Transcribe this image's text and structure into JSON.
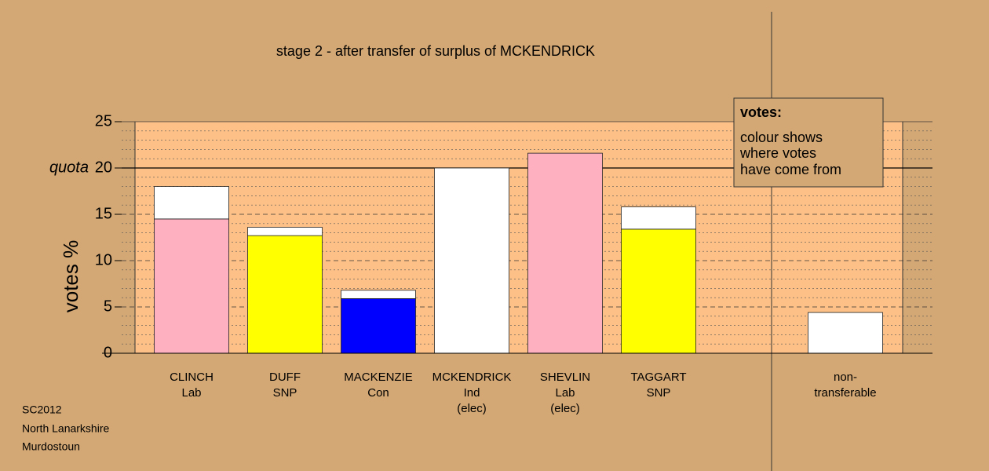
{
  "chart_data": {
    "type": "stacked_bar",
    "title": "stage 2 - after transfer of surplus of MCKENDRICK",
    "y_label": "votes %",
    "quota_label": "quota",
    "quota": 20,
    "categories": [
      [
        "CLINCH",
        "Lab"
      ],
      [
        "DUFF",
        "SNP"
      ],
      [
        "MACKENZIE",
        "Con"
      ],
      [
        "MCKENDRICK",
        "Ind",
        "(elec)"
      ],
      [
        "SHEVLIN",
        "Lab",
        "(elec)"
      ],
      [
        "TAGGART",
        "SNP"
      ],
      null,
      [
        "non-",
        "transferable"
      ]
    ],
    "series": [
      {
        "colors": [
          "#ffb0c0",
          "#ffff00",
          "#0000ff",
          null,
          "#ffb0c0",
          "#ffff00",
          null,
          null
        ],
        "values": [
          14.5,
          12.7,
          5.9,
          null,
          21.6,
          13.4,
          null,
          null
        ]
      },
      {
        "color": "#ffffff",
        "values": [
          3.5,
          0.9,
          0.9,
          20,
          null,
          2.4,
          null,
          4.4
        ]
      }
    ],
    "ylim": [
      0,
      25
    ],
    "yticks": [
      0,
      5,
      10,
      15,
      20,
      25
    ],
    "yminor": [
      1,
      2,
      3,
      4,
      6,
      7,
      8,
      9,
      11,
      12,
      13,
      14,
      16,
      17,
      18,
      19,
      21,
      22,
      23,
      24
    ],
    "grid": true,
    "legend": {
      "title": "votes:",
      "lines": [
        "colour shows",
        "where votes",
        "have come from"
      ]
    },
    "footer": [
      "SC2012",
      "North Lanarkshire",
      "Murdostoun"
    ]
  }
}
